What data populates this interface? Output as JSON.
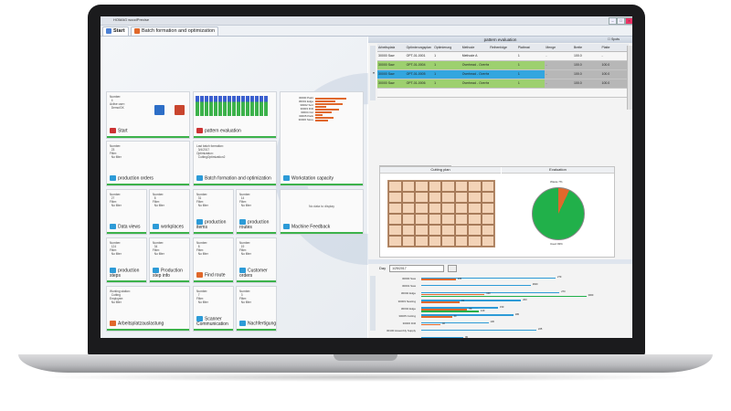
{
  "window": {
    "title": "HOMAG woodPrecise",
    "buttons": [
      "–",
      "□",
      "×"
    ]
  },
  "tabs": [
    {
      "label": "Start",
      "active": true
    },
    {
      "label": "Batch formation and optimization",
      "active": false
    }
  ],
  "tiles": {
    "user": {
      "text": "Number:\n  4\nActive user:\n  Demo/GK",
      "label": "Start"
    },
    "pattern": {
      "label": "pattern evaluation"
    },
    "capacity": {
      "label": "Workstation capacity"
    },
    "prod_orders": {
      "text": "Number:\n  23\nFilter:\n  No filter",
      "label": "production orders"
    },
    "batch": {
      "text": "Last batch formation:\n  3/4/2017\nOptimization:\n  CuttingOptimization2",
      "label": "Batch formation and optimization"
    },
    "data_views": {
      "text": "Number:\n  27\nFilter:\n  No filter",
      "label": "Data views"
    },
    "workplaces": {
      "text": "Number:\n  8\nFilter:\n  No filter",
      "label": "workplaces"
    },
    "prod_items": {
      "text": "Number:\n  31\nFilter:\n  No filter",
      "label": "production items"
    },
    "prod_routes": {
      "text": "Number:\n  14\nFilter:\n  No filter",
      "label": "production routes"
    },
    "machine_fb": {
      "text": "No data to display",
      "label": "Machine Feedback"
    },
    "prod_steps": {
      "text": "Number:\n  124\nFilter:\n  No filter",
      "label": "production steps"
    },
    "step_info": {
      "text": "Number:\n  34\nFilter:\n  No filter",
      "label": "Production step info"
    },
    "find_route": {
      "text": "Number:\n  8\nFilter:\n  No filter",
      "label": "Find route"
    },
    "customer": {
      "text": "Number:\n  19\nFilter:\n  No filter",
      "label": "Customer orders"
    },
    "arbeitsplatz": {
      "text": "Working station:\n  Cutting\nEmployee:\n  No filter",
      "label": "Arbeitsplatzauslastung"
    },
    "scanner": {
      "text": "Number:\n  7\nFilter:\n  No filter",
      "label": "Scanner Communication"
    },
    "nachfertigung": {
      "text": "Number:\n  3\nFilter:\n  No filter",
      "label": "Nachfertigung"
    }
  },
  "capacity_labels": [
    "30000 Paint",
    "30001 Edge",
    "30002 Sort",
    "30003 Drill",
    "30004 Cut",
    "30005 Pack",
    "30006 Store"
  ],
  "pattern_panel": {
    "title": "pattern evaluation",
    "checkbox_label": "Spots",
    "headers": [
      "Arbeitsplatz",
      "Optimierungsplan",
      "Optimierung",
      "Methode",
      "Reihenfolge",
      "Plattmat",
      "Menge",
      "Breite",
      "Platte"
    ],
    "rows": [
      {
        "style": "w",
        "cells": [
          "30000 Saw",
          "OPT-01-0001",
          "1",
          "Methode A",
          "",
          "1",
          "-",
          "100.0",
          "-"
        ]
      },
      {
        "style": "g",
        "cells": [
          "30000 Saw",
          "OPT-01-0004",
          "1",
          "Overhead - Overhead",
          "",
          "1",
          "-",
          "100.0",
          "100.0"
        ]
      },
      {
        "style": "b",
        "cells": [
          "30000 Saw",
          "OPT-01-0005",
          "1",
          "Overhead - Overhead",
          "",
          "1",
          "-",
          "100.0",
          "100.0"
        ]
      },
      {
        "style": "g",
        "cells": [
          "30000 Saw",
          "OPT-01-0006",
          "1",
          "Overhead - Overhead",
          "",
          "1",
          "-",
          "100.0",
          "100.0"
        ]
      },
      {
        "style": "w",
        "cells": [
          "",
          "",
          "",
          "",
          "",
          "",
          "",
          "",
          ""
        ]
      }
    ]
  },
  "subtabs": [
    "Cutting pattern",
    "Cutting pattern part"
  ],
  "cutting": {
    "plan_label": "Cutting plan",
    "eval_label": "Evaluation",
    "pie": {
      "waste": 7,
      "used": 93
    },
    "pie_top_label": "Waste 7%",
    "pie_bottom_label": "Used 93%"
  },
  "toolbar2": {
    "label": "Day",
    "date": "1/25/2017"
  },
  "bar_rows": [
    {
      "label": "30000 Saw",
      "blue": 70,
      "orange": 18,
      "green": 0,
      "vals": [
        "270",
        "105"
      ]
    },
    {
      "label": "30001 Saw",
      "blue": 57,
      "orange": 0,
      "green": 0,
      "vals": [
        "2600",
        ""
      ]
    },
    {
      "label": "30002 Edge",
      "blue": 72,
      "orange": 33,
      "green": 86,
      "vals": [
        "270",
        "100",
        "3000"
      ]
    },
    {
      "label": "30003 Nesting",
      "blue": 52,
      "orange": 20,
      "green": 0,
      "vals": [
        "200",
        "72"
      ]
    },
    {
      "label": "30004 Edge",
      "blue": 40,
      "orange": 24,
      "green": 30,
      "vals": [
        "150",
        "80",
        "120"
      ]
    },
    {
      "label": "30005 Cutting",
      "blue": 48,
      "orange": 16,
      "green": 0,
      "vals": [
        "180",
        "60"
      ]
    },
    {
      "label": "30006 Drill",
      "blue": 35,
      "orange": 10,
      "green": 0,
      "vals": [
        "130",
        "40"
      ]
    },
    {
      "label": "30100 Assembly Supply",
      "blue": 60,
      "orange": 0,
      "green": 0,
      "vals": [
        "225",
        ""
      ]
    },
    {
      "label": "30101 Pack",
      "blue": 22,
      "orange": 0,
      "green": 0,
      "vals": [
        "80",
        ""
      ]
    }
  ]
}
